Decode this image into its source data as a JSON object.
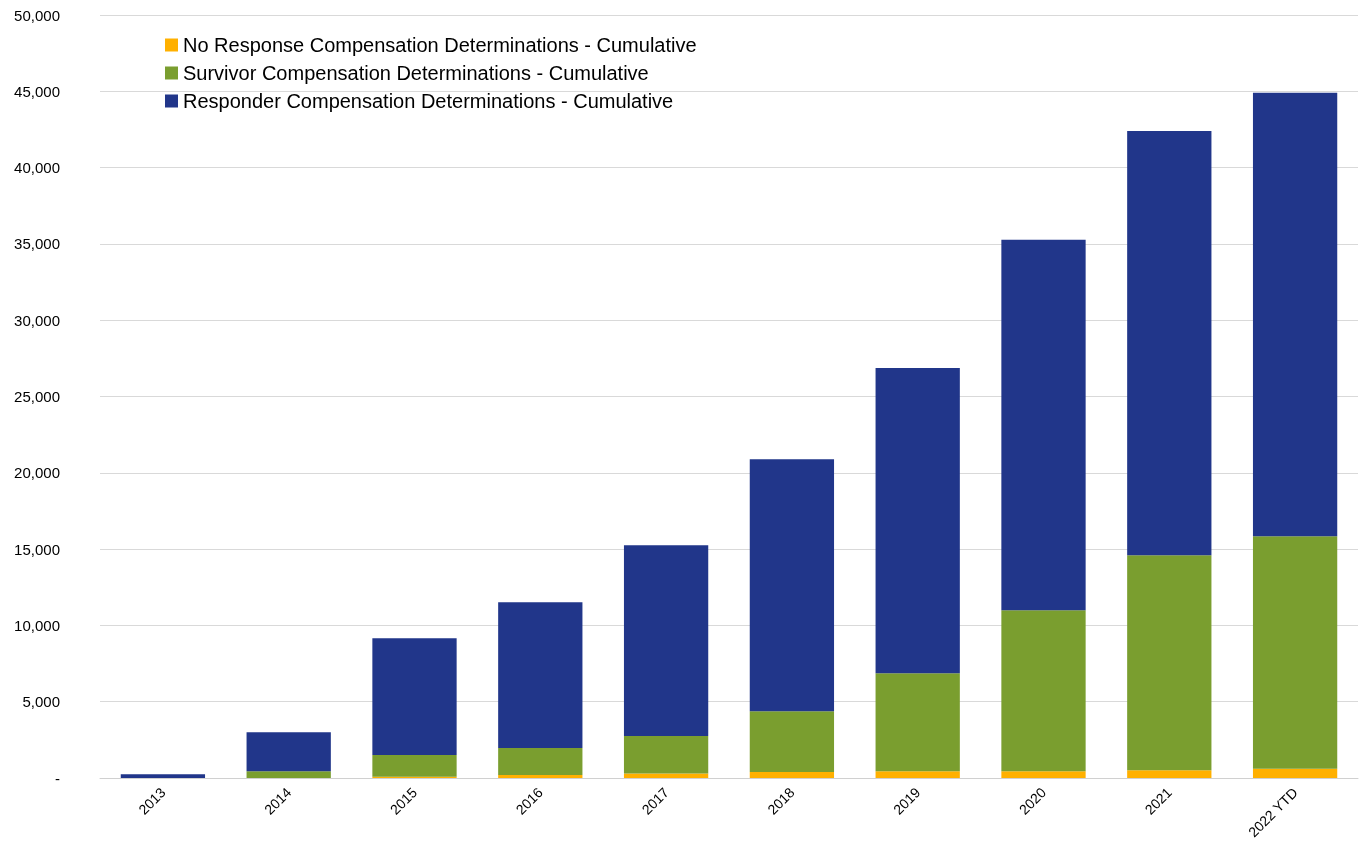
{
  "chart_data": {
    "type": "bar",
    "stacked": true,
    "categories": [
      "2013",
      "2014",
      "2015",
      "2016",
      "2017",
      "2018",
      "2019",
      "2020",
      "2021",
      "2022 YTD"
    ],
    "series": [
      {
        "name": "No Response Compensation Determinations - Cumulative",
        "color": "#ffb000",
        "values": [
          0,
          null,
          80,
          200,
          300,
          400,
          450,
          450,
          500,
          600
        ]
      },
      {
        "name": "Survivor Compensation Determinations - Cumulative",
        "color": "#7a9e2f",
        "values": [
          0,
          450,
          1420,
          1760,
          2450,
          3980,
          6420,
          10550,
          14100,
          15250
        ]
      },
      {
        "name": "Responder Compensation Determinations - Cumulative",
        "color": "#21368a",
        "values": [
          250,
          2550,
          7660,
          9560,
          12500,
          16500,
          20000,
          24280,
          27800,
          29050
        ]
      }
    ],
    "ylim": [
      0,
      50000
    ],
    "yticks": [
      {
        "value": 0,
        "label": "-"
      },
      {
        "value": 5000,
        "label": "5,000"
      },
      {
        "value": 10000,
        "label": "10,000"
      },
      {
        "value": 15000,
        "label": "15,000"
      },
      {
        "value": 20000,
        "label": "20,000"
      },
      {
        "value": 25000,
        "label": "25,000"
      },
      {
        "value": 30000,
        "label": "30,000"
      },
      {
        "value": 35000,
        "label": "35,000"
      },
      {
        "value": 40000,
        "label": "40,000"
      },
      {
        "value": 45000,
        "label": "45,000"
      },
      {
        "value": 50000,
        "label": "50,000"
      }
    ],
    "grid": "y",
    "legend": "top left"
  }
}
